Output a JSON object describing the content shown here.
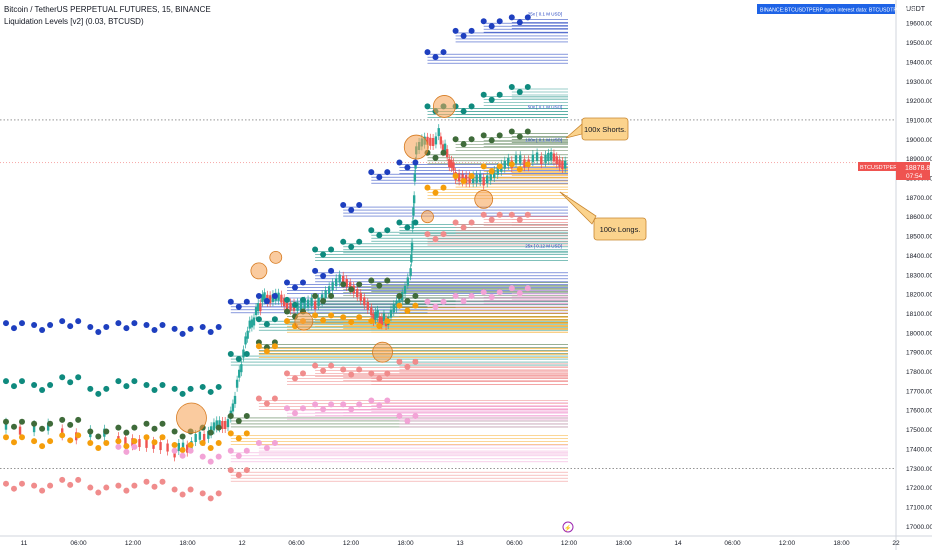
{
  "header": {
    "symbol_title": "Bitcoin / TetherUS PERPETUAL FUTURES, 15, BINANCE",
    "indicator_title": "Liquidation Levels [v2] (0.03, BTCUSD)",
    "currency": "USDT",
    "oi_badge": "BINANCE:BTCUSDTPERP open interest data: BTCUSDTPERP_OI"
  },
  "price_tag": {
    "symbol": "BTCUSDTPERP",
    "price": "18878.8",
    "countdown": "07:54"
  },
  "callouts": {
    "shorts": "100x Shorts.",
    "longs": "100x Longs."
  },
  "axis_badge": "⚡",
  "colors": {
    "x25": "#1e3fbf",
    "x50": "#0f8a7e",
    "x100s": "#3f6b3a",
    "x100l": "#f59e0b",
    "x50l": "#f08c8c",
    "x25l": "#f2a3d6",
    "candle_up": "#26a69a",
    "candle_down": "#ef5350",
    "circle": "#f5a050",
    "callout_bg": "#fbd38d",
    "price_badge": "#ef5350",
    "oi_badge": "#1e63e6"
  },
  "chart_data": {
    "type": "scatter",
    "title": "Bitcoin / TetherUS PERPETUAL FUTURES, 15, BINANCE",
    "yticks": [
      17000,
      17100,
      17200,
      17300,
      17400,
      17500,
      17600,
      17700,
      17800,
      17900,
      18000,
      18100,
      18200,
      18300,
      18400,
      18500,
      18600,
      18700,
      18800,
      18900,
      19000,
      19100,
      19200,
      19300,
      19400,
      19500,
      19600
    ],
    "ylim": [
      16950,
      19720
    ],
    "xticks": [
      "11",
      "06:00",
      "12:00",
      "18:00",
      "12",
      "06:00",
      "12:00",
      "18:00",
      "13",
      "06:00",
      "12:00",
      "18:00",
      "14",
      "06:00",
      "12:00",
      "18:00",
      "22"
    ],
    "dotted_levels": [
      19100,
      17300
    ],
    "current_price": 18878.8,
    "annotations": [
      "25x [ 0.1 M USD]",
      "50x [ 0.1 M USD]",
      "100x [ 0.1 M USD]",
      "25x [ 0.12 M USD]"
    ],
    "series": [
      {
        "key": "x25",
        "points": [
          [
            0,
            18040
          ],
          [
            0.05,
            18030
          ],
          [
            0.1,
            18050
          ],
          [
            0.15,
            18020
          ],
          [
            0.2,
            18040
          ],
          [
            0.25,
            18030
          ],
          [
            0.3,
            18010
          ],
          [
            0.35,
            18020
          ],
          [
            0.4,
            18150
          ],
          [
            0.45,
            18180
          ],
          [
            0.5,
            18250
          ],
          [
            0.55,
            18310
          ],
          [
            0.6,
            18650
          ],
          [
            0.65,
            18820
          ],
          [
            0.7,
            18870
          ],
          [
            0.75,
            19440
          ],
          [
            0.8,
            19550
          ],
          [
            0.85,
            19600
          ],
          [
            0.9,
            19620
          ]
        ]
      },
      {
        "key": "x50",
        "points": [
          [
            0,
            17740
          ],
          [
            0.05,
            17720
          ],
          [
            0.1,
            17760
          ],
          [
            0.15,
            17700
          ],
          [
            0.2,
            17740
          ],
          [
            0.25,
            17720
          ],
          [
            0.3,
            17700
          ],
          [
            0.35,
            17710
          ],
          [
            0.4,
            17880
          ],
          [
            0.45,
            18060
          ],
          [
            0.5,
            18160
          ],
          [
            0.55,
            18420
          ],
          [
            0.6,
            18460
          ],
          [
            0.65,
            18520
          ],
          [
            0.7,
            18560
          ],
          [
            0.75,
            19160
          ],
          [
            0.8,
            19160
          ],
          [
            0.85,
            19220
          ],
          [
            0.9,
            19260
          ]
        ]
      },
      {
        "key": "x100s",
        "points": [
          [
            0,
            17530
          ],
          [
            0.05,
            17520
          ],
          [
            0.1,
            17540
          ],
          [
            0.15,
            17480
          ],
          [
            0.2,
            17500
          ],
          [
            0.25,
            17520
          ],
          [
            0.3,
            17480
          ],
          [
            0.35,
            17500
          ],
          [
            0.4,
            17560
          ],
          [
            0.45,
            17940
          ],
          [
            0.5,
            18100
          ],
          [
            0.55,
            18180
          ],
          [
            0.6,
            18240
          ],
          [
            0.65,
            18260
          ],
          [
            0.7,
            18180
          ],
          [
            0.75,
            18920
          ],
          [
            0.8,
            18990
          ],
          [
            0.85,
            19010
          ],
          [
            0.9,
            19030
          ]
        ]
      },
      {
        "key": "x100l",
        "points": [
          [
            0,
            17450
          ],
          [
            0.05,
            17430
          ],
          [
            0.1,
            17460
          ],
          [
            0.15,
            17420
          ],
          [
            0.2,
            17430
          ],
          [
            0.25,
            17450
          ],
          [
            0.3,
            17410
          ],
          [
            0.35,
            17420
          ],
          [
            0.4,
            17470
          ],
          [
            0.45,
            17920
          ],
          [
            0.5,
            18050
          ],
          [
            0.55,
            18080
          ],
          [
            0.6,
            18070
          ],
          [
            0.65,
            18050
          ],
          [
            0.7,
            18130
          ],
          [
            0.75,
            18740
          ],
          [
            0.8,
            18800
          ],
          [
            0.85,
            18850
          ],
          [
            0.9,
            18860
          ]
        ]
      },
      {
        "key": "x50l",
        "points": [
          [
            0,
            17210
          ],
          [
            0.05,
            17200
          ],
          [
            0.1,
            17230
          ],
          [
            0.15,
            17190
          ],
          [
            0.2,
            17200
          ],
          [
            0.25,
            17220
          ],
          [
            0.3,
            17180
          ],
          [
            0.35,
            17160
          ],
          [
            0.4,
            17280
          ],
          [
            0.45,
            17650
          ],
          [
            0.5,
            17780
          ],
          [
            0.55,
            17820
          ],
          [
            0.6,
            17800
          ],
          [
            0.65,
            17780
          ],
          [
            0.7,
            17840
          ],
          [
            0.75,
            18500
          ],
          [
            0.8,
            18560
          ],
          [
            0.85,
            18600
          ],
          [
            0.9,
            18600
          ]
        ]
      },
      {
        "key": "x25l",
        "points": [
          [
            0.2,
            17400
          ],
          [
            0.3,
            17380
          ],
          [
            0.35,
            17350
          ],
          [
            0.4,
            17380
          ],
          [
            0.45,
            17420
          ],
          [
            0.5,
            17600
          ],
          [
            0.55,
            17620
          ],
          [
            0.6,
            17620
          ],
          [
            0.65,
            17640
          ],
          [
            0.7,
            17560
          ],
          [
            0.75,
            18150
          ],
          [
            0.8,
            18180
          ],
          [
            0.85,
            18200
          ],
          [
            0.9,
            18220
          ]
        ]
      }
    ]
  }
}
